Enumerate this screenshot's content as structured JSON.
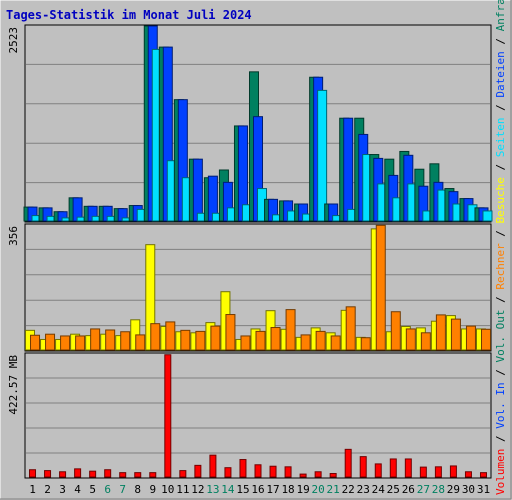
{
  "chart_data": [
    {
      "type": "bar",
      "title": "Tages-Statistik im Monat Juli 2024",
      "categories": [
        "1",
        "2",
        "3",
        "4",
        "5",
        "6",
        "7",
        "8",
        "9",
        "10",
        "11",
        "12",
        "13",
        "14",
        "15",
        "16",
        "17",
        "18",
        "19",
        "20",
        "21",
        "22",
        "23",
        "24",
        "25",
        "26",
        "27",
        "28",
        "29",
        "30",
        "31"
      ],
      "weekend_days": [
        "6",
        "7",
        "13",
        "14",
        "20",
        "21",
        "27",
        "28"
      ],
      "ylim": [
        0,
        2523
      ],
      "ymax_label": "2523",
      "grid": true,
      "series": [
        {
          "name": "Anfragen",
          "color": "#008060",
          "values": [
            180,
            170,
            120,
            300,
            190,
            190,
            160,
            200,
            2523,
            2250,
            1570,
            800,
            560,
            660,
            1230,
            1930,
            280,
            260,
            220,
            1860,
            220,
            1330,
            1330,
            860,
            800,
            900,
            670,
            740,
            420,
            290,
            170
          ]
        },
        {
          "name": "Dateien",
          "color": "#0040ff",
          "values": [
            180,
            170,
            120,
            300,
            190,
            190,
            160,
            200,
            2523,
            2250,
            1570,
            800,
            580,
            500,
            1230,
            1350,
            280,
            260,
            220,
            1860,
            220,
            1330,
            1120,
            810,
            590,
            850,
            450,
            500,
            380,
            290,
            170
          ]
        },
        {
          "name": "Seiten",
          "color": "#00e0ff",
          "values": [
            70,
            60,
            40,
            50,
            60,
            60,
            40,
            150,
            2220,
            780,
            560,
            100,
            100,
            170,
            210,
            420,
            80,
            130,
            90,
            1690,
            70,
            150,
            860,
            480,
            300,
            480,
            130,
            400,
            220,
            210,
            130
          ]
        }
      ]
    },
    {
      "type": "bar",
      "ylim": [
        0,
        356
      ],
      "ymax_label": "356",
      "grid": true,
      "series": [
        {
          "name": "Besuche",
          "color": "#ffff00",
          "values": [
            56,
            30,
            30,
            45,
            41,
            45,
            41,
            86,
            300,
            67,
            52,
            49,
            78,
            166,
            30,
            60,
            112,
            59,
            36,
            63,
            49,
            113,
            36,
            345,
            52,
            67,
            63,
            82,
            98,
            60,
            60
          ]
        },
        {
          "name": "Rechner",
          "color": "#ff8000",
          "values": [
            42,
            45,
            40,
            40,
            60,
            57,
            52,
            43,
            75,
            80,
            56,
            53,
            68,
            101,
            40,
            53,
            64,
            115,
            43,
            53,
            40,
            123,
            35,
            355,
            109,
            60,
            49,
            100,
            88,
            68,
            59
          ]
        }
      ]
    },
    {
      "type": "bar",
      "ylim": [
        0,
        422.57
      ],
      "ymax_label": "422.57 MB",
      "grid": true,
      "series": [
        {
          "name": "Volumen",
          "color": "#ff0000",
          "values": [
            25,
            22,
            18,
            28,
            20,
            25,
            15,
            15,
            15,
            420,
            22,
            40,
            75,
            32,
            60,
            42,
            37,
            35,
            10,
            18,
            12,
            95,
            70,
            45,
            62,
            62,
            34,
            35,
            38,
            18,
            15
          ]
        }
      ]
    }
  ],
  "legend_right_top": [
    {
      "text": "Anfragen",
      "color": "#008060"
    },
    {
      "text": " / ",
      "color": "#000000"
    },
    {
      "text": "Dateien",
      "color": "#0040ff"
    },
    {
      "text": " / ",
      "color": "#000000"
    },
    {
      "text": "Seiten",
      "color": "#00e0ff"
    },
    {
      "text": " / ",
      "color": "#000000"
    },
    {
      "text": "Besuche",
      "color": "#ffff00"
    },
    {
      "text": " / ",
      "color": "#000000"
    },
    {
      "text": "Rechner",
      "color": "#ff8000"
    },
    {
      "text": " / ",
      "color": "#000000"
    },
    {
      "text": "Vol. Out",
      "color": "#008060"
    },
    {
      "text": " / ",
      "color": "#000000"
    },
    {
      "text": "Vol. In",
      "color": "#0040ff"
    },
    {
      "text": " / ",
      "color": "#000000"
    },
    {
      "text": "Volumen",
      "color": "#ff0000"
    }
  ],
  "colors": {
    "background": "#c0c0c0",
    "panel_fill": "#c0c0c0",
    "grid": "#808080",
    "title": "#0000c0",
    "weekday_label": "#000000",
    "weekend_label": "#008060"
  }
}
